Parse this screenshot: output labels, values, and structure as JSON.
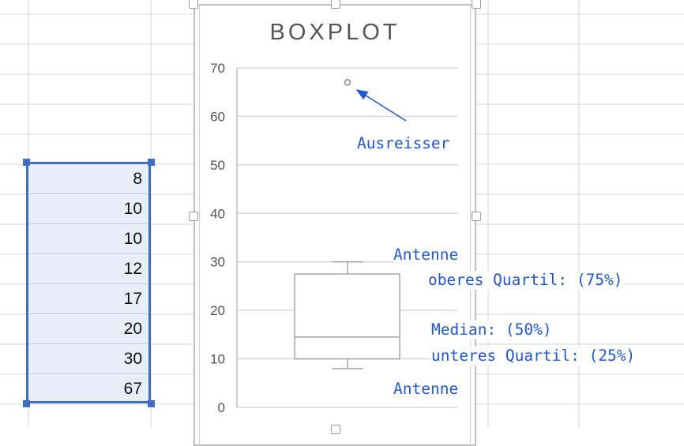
{
  "spreadsheet": {
    "values": [
      "8",
      "10",
      "10",
      "12",
      "17",
      "20",
      "30",
      "67"
    ]
  },
  "chart_data": {
    "type": "boxplot",
    "title": "BOXPLOT",
    "ylim": [
      0,
      70
    ],
    "yticks": [
      0,
      10,
      20,
      30,
      40,
      50,
      60,
      70
    ],
    "data": [
      8,
      10,
      10,
      12,
      17,
      20,
      30,
      67
    ],
    "whisker_low": 8,
    "q1": 10,
    "median": 14.5,
    "q3": 27.5,
    "whisker_high": 30,
    "outliers": [
      67
    ],
    "grid": true
  },
  "annotations": {
    "outlier": "Ausreisser",
    "antenna_top": "Antenne",
    "upper_quartile": "oberes Quartil: (75%)",
    "median": "Median: (50%)",
    "lower_quartile": "unteres Quartil: (25%)",
    "antenna_bottom": "Antenne"
  },
  "colors": {
    "selection": "#3d6ec2",
    "selection_fill": "#e9edf7",
    "annotation": "#2257c9",
    "box": "#a6a6a6",
    "gridline": "#d9d9d9"
  }
}
